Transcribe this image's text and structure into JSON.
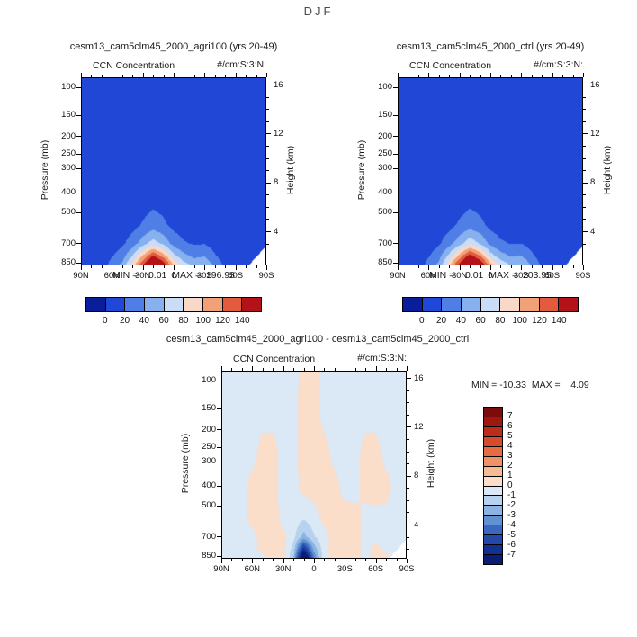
{
  "figure_title": "DJF",
  "panels": [
    {
      "title": "cesm13_cam5clm45_2000_agri100 (yrs 20-49)",
      "var_label": "CCN Concentration",
      "units_label": "#/cm:S:3:N:",
      "minmax": "MIN =    0.01  MAX =  196.93",
      "y_left_label": "Pressure (mb)",
      "y_right_label": "Height (km)"
    },
    {
      "title": "cesm13_cam5clm45_2000_ctrl (yrs 20-49)",
      "var_label": "CCN Concentration",
      "units_label": "#/cm:S:3:N:",
      "minmax": "MIN =    0.01  MAX =  203.95",
      "y_left_label": "Pressure (mb)",
      "y_right_label": "Height (km)"
    },
    {
      "title": "cesm13_cam5clm45_2000_agri100 - cesm13_cam5clm45_2000_ctrl",
      "var_label": "CCN Concentration",
      "units_label": "#/cm:S:3:N:",
      "minmax": "MIN = -10.33  MAX =    4.09",
      "y_left_label": "Pressure (mb)",
      "y_right_label": "Height (km)"
    }
  ],
  "chart_data": [
    {
      "type": "heatmap",
      "title": "cesm13_cam5clm45_2000_agri100 (yrs 20-49)",
      "var": "CCN Concentration",
      "units": "#/cm:S:3:N:",
      "season": "DJF",
      "xlabel_ticks": [
        "90N",
        "60N",
        "30N",
        "0",
        "30S",
        "60S",
        "90S"
      ],
      "x_tick_lats": [
        90,
        60,
        30,
        0,
        -30,
        -60,
        -90
      ],
      "ylabel": "Pressure (mb)",
      "ylabel_right": "Height (km)",
      "pressure_ticks": [
        100,
        150,
        200,
        250,
        300,
        400,
        500,
        700,
        850
      ],
      "height_ticks": [
        16,
        12,
        8,
        4
      ],
      "levels": [
        0,
        20,
        40,
        60,
        80,
        100,
        120,
        140
      ],
      "colors": [
        "#0a1e9c",
        "#2147d6",
        "#4f7fe6",
        "#86b0ee",
        "#cadcf6",
        "#f8d8c6",
        "#f2a078",
        "#e25b3c",
        "#b21218"
      ],
      "min": 0.01,
      "max": 196.93,
      "colorbar": "horizontal-bottom",
      "terrain_mask": true,
      "grid": {
        "lats": [
          90,
          80,
          70,
          60,
          50,
          40,
          30,
          20,
          10,
          0,
          -10,
          -20,
          -30,
          -40,
          -50,
          -60,
          -70,
          -80,
          -90
        ],
        "heights_km": [
          1.2,
          2.0,
          3.0,
          4.5,
          7.0,
          10.0,
          16.6
        ],
        "values": [
          [
            1,
            3,
            6,
            30,
            45,
            90,
            140,
            195,
            160,
            100,
            70,
            55,
            60,
            35,
            15,
            6,
            3,
            1,
            0
          ],
          [
            1,
            2,
            4,
            18,
            30,
            60,
            100,
            140,
            110,
            65,
            45,
            35,
            38,
            22,
            9,
            4,
            2,
            1,
            0
          ],
          [
            0,
            1,
            3,
            10,
            16,
            30,
            50,
            70,
            55,
            32,
            22,
            18,
            19,
            11,
            5,
            2,
            1,
            0,
            0
          ],
          [
            0,
            1,
            2,
            5,
            8,
            13,
            22,
            30,
            24,
            14,
            10,
            8,
            8,
            5,
            2,
            1,
            0,
            0,
            0
          ],
          [
            0,
            0,
            1,
            2,
            3,
            5,
            8,
            11,
            9,
            5,
            4,
            3,
            3,
            2,
            1,
            0,
            0,
            0,
            0
          ],
          [
            0,
            0,
            0,
            1,
            1,
            2,
            3,
            4,
            3,
            2,
            1,
            1,
            1,
            1,
            0,
            0,
            0,
            0,
            0
          ],
          [
            0,
            0,
            0,
            0,
            0,
            0,
            0,
            0,
            0,
            0,
            0,
            0,
            0,
            0,
            0,
            0,
            0,
            0,
            0
          ]
        ]
      }
    },
    {
      "type": "heatmap",
      "title": "cesm13_cam5clm45_2000_ctrl (yrs 20-49)",
      "var": "CCN Concentration",
      "units": "#/cm:S:3:N:",
      "season": "DJF",
      "xlabel_ticks": [
        "90N",
        "60N",
        "30N",
        "0",
        "30S",
        "60S",
        "90S"
      ],
      "x_tick_lats": [
        90,
        60,
        30,
        0,
        -30,
        -60,
        -90
      ],
      "ylabel": "Pressure (mb)",
      "ylabel_right": "Height (km)",
      "pressure_ticks": [
        100,
        150,
        200,
        250,
        300,
        400,
        500,
        700,
        850
      ],
      "height_ticks": [
        16,
        12,
        8,
        4
      ],
      "levels": [
        0,
        20,
        40,
        60,
        80,
        100,
        120,
        140
      ],
      "colors": [
        "#0a1e9c",
        "#2147d6",
        "#4f7fe6",
        "#86b0ee",
        "#cadcf6",
        "#f8d8c6",
        "#f2a078",
        "#e25b3c",
        "#b21218"
      ],
      "min": 0.01,
      "max": 203.95,
      "colorbar": "horizontal-bottom",
      "terrain_mask": true,
      "grid": {
        "lats": [
          90,
          80,
          70,
          60,
          50,
          40,
          30,
          20,
          10,
          0,
          -10,
          -20,
          -30,
          -40,
          -50,
          -60,
          -70,
          -80,
          -90
        ],
        "heights_km": [
          1.2,
          2.0,
          3.0,
          4.5,
          7.0,
          10.0,
          16.6
        ],
        "values": [
          [
            1,
            3,
            6,
            30,
            45,
            95,
            150,
            200,
            170,
            110,
            75,
            60,
            62,
            38,
            16,
            6,
            3,
            1,
            0
          ],
          [
            1,
            2,
            4,
            18,
            32,
            65,
            105,
            148,
            118,
            70,
            48,
            38,
            40,
            24,
            10,
            4,
            2,
            1,
            0
          ],
          [
            0,
            1,
            3,
            10,
            17,
            32,
            52,
            74,
            58,
            34,
            23,
            19,
            20,
            12,
            5,
            2,
            1,
            0,
            0
          ],
          [
            0,
            1,
            2,
            5,
            8,
            14,
            23,
            31,
            25,
            15,
            10,
            8,
            8,
            5,
            2,
            1,
            0,
            0,
            0
          ],
          [
            0,
            0,
            1,
            2,
            3,
            5,
            8,
            11,
            9,
            5,
            4,
            3,
            3,
            2,
            1,
            0,
            0,
            0,
            0
          ],
          [
            0,
            0,
            0,
            1,
            1,
            2,
            3,
            4,
            3,
            2,
            1,
            1,
            1,
            1,
            0,
            0,
            0,
            0,
            0
          ],
          [
            0,
            0,
            0,
            0,
            0,
            0,
            0,
            0,
            0,
            0,
            0,
            0,
            0,
            0,
            0,
            0,
            0,
            0,
            0
          ]
        ]
      }
    },
    {
      "type": "heatmap",
      "title": "cesm13_cam5clm45_2000_agri100 - cesm13_cam5clm45_2000_ctrl",
      "var": "CCN Concentration",
      "units": "#/cm:S:3:N:",
      "season": "DJF",
      "xlabel_ticks": [
        "90N",
        "60N",
        "30N",
        "0",
        "30S",
        "60S",
        "90S"
      ],
      "x_tick_lats": [
        90,
        60,
        30,
        0,
        -30,
        -60,
        -90
      ],
      "ylabel": "Pressure (mb)",
      "ylabel_right": "Height (km)",
      "pressure_ticks": [
        100,
        150,
        200,
        250,
        300,
        400,
        500,
        700,
        850
      ],
      "height_ticks": [
        16,
        12,
        8,
        4
      ],
      "levels": [
        -7,
        -6,
        -5,
        -4,
        -3,
        -2,
        -1,
        0,
        1,
        2,
        3,
        4,
        5,
        6,
        7
      ],
      "colors": [
        "#0a1c74",
        "#142f92",
        "#2348aa",
        "#3a68c0",
        "#6092d2",
        "#8cb4e2",
        "#b6d2ee",
        "#dbe8f6",
        "#fadeca",
        "#f6bb92",
        "#f09264",
        "#e66c44",
        "#d84a2c",
        "#bc2c1a",
        "#9c1810",
        "#7c0c0c"
      ],
      "min": -10.33,
      "max": 4.09,
      "colorbar": "vertical-right",
      "terrain_mask": true,
      "grid": {
        "lats": [
          90,
          80,
          70,
          60,
          50,
          40,
          30,
          20,
          10,
          0,
          -10,
          -20,
          -30,
          -40,
          -50,
          -60,
          -70,
          -80,
          -90
        ],
        "heights_km": [
          1.2,
          2.0,
          3.0,
          4.5,
          7.0,
          10.0,
          13.0,
          16.6
        ],
        "values": [
          [
            -0.3,
            -0.3,
            -0.3,
            -0.3,
            -0.3,
            0.4,
            0.4,
            -2.0,
            -10.0,
            -4.0,
            -0.3,
            0.4,
            0.5,
            0.4,
            -0.3,
            0.4,
            0.4,
            -0.3,
            -0.3
          ],
          [
            -0.3,
            -0.3,
            -0.3,
            -0.3,
            0.3,
            0.4,
            0.3,
            -1.4,
            -6.5,
            -2.6,
            -0.3,
            0.4,
            0.4,
            0.4,
            -0.3,
            0.3,
            -0.3,
            -0.3,
            -0.3
          ],
          [
            -0.3,
            -0.3,
            -0.3,
            -0.3,
            0.4,
            0.4,
            0.3,
            -0.7,
            -2.4,
            -1.1,
            -0.3,
            0.4,
            0.3,
            0.3,
            -0.3,
            -0.3,
            -0.3,
            -0.3,
            -0.3
          ],
          [
            -0.3,
            -0.3,
            -0.3,
            0.3,
            0.4,
            0.4,
            -0.3,
            -0.4,
            -0.9,
            -0.4,
            0.3,
            0.4,
            0.4,
            0.3,
            -0.3,
            -0.3,
            -0.3,
            -0.3,
            -0.3
          ],
          [
            -0.3,
            -0.3,
            -0.3,
            0.3,
            0.4,
            0.3,
            -0.3,
            -0.3,
            0.3,
            0.4,
            0.3,
            0.3,
            -0.3,
            -0.3,
            0.3,
            0.4,
            0.3,
            -0.3,
            -0.3
          ],
          [
            -0.3,
            -0.3,
            -0.3,
            -0.3,
            0.3,
            0.3,
            -0.3,
            -0.3,
            0.4,
            0.4,
            0.3,
            -0.3,
            -0.3,
            -0.3,
            0.3,
            0.3,
            -0.3,
            -0.3,
            -0.3
          ],
          [
            -0.3,
            -0.3,
            -0.3,
            -0.3,
            -0.3,
            -0.3,
            -0.3,
            -0.3,
            0.4,
            0.4,
            -0.3,
            -0.3,
            -0.3,
            -0.3,
            -0.3,
            -0.3,
            -0.3,
            -0.3,
            -0.3
          ],
          [
            -0.3,
            -0.3,
            -0.3,
            -0.3,
            -0.3,
            -0.3,
            -0.3,
            -0.3,
            0.3,
            0.3,
            -0.3,
            -0.3,
            -0.3,
            -0.3,
            -0.3,
            -0.3,
            -0.3,
            -0.3,
            -0.3
          ]
        ]
      }
    }
  ]
}
